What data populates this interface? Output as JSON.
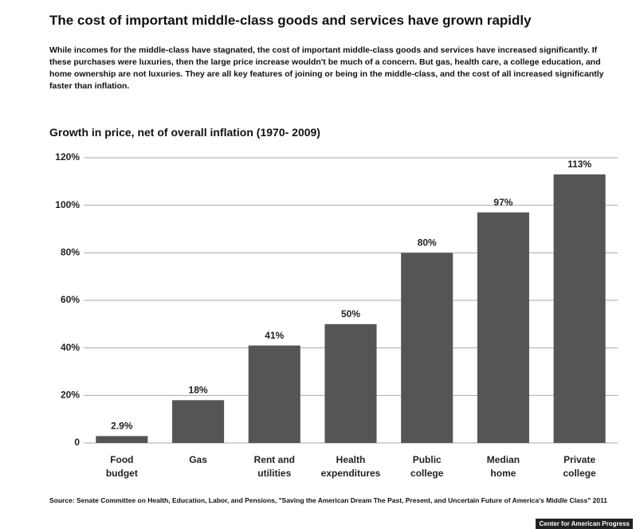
{
  "chart_data": {
    "type": "bar",
    "title": "The cost of important middle-class goods and services have grown rapidly",
    "subtitle": "While incomes for the middle-class have stagnated, the cost of important middle-class goods and services have increased significantly. If these purchases were luxuries, then the large price increase wouldn't be much of a concern. But gas, health care, a college education, and home ownership are not luxuries. They are all key features of joining or being in the middle-class, and the cost of all increased significantly faster than inflation.",
    "chart_title": "Growth in price, net of overall inflation (1970- 2009)",
    "categories": [
      "Food\nbudget",
      "Gas",
      "Rent and\nutilities",
      "Health\nexpenditures",
      "Public\ncollege",
      "Median\nhome",
      "Private\ncollege"
    ],
    "values": [
      2.9,
      18,
      41,
      50,
      80,
      97,
      113
    ],
    "value_labels": [
      "2.9%",
      "18%",
      "41%",
      "50%",
      "80%",
      "97%",
      "113%"
    ],
    "color": "#555555",
    "ylim": [
      0,
      120
    ],
    "yticks": [
      0,
      {
        "value": 20,
        "label": "20%"
      },
      {
        "value": 40,
        "label": "40%"
      },
      {
        "value": 60,
        "label": "60%"
      },
      {
        "value": 80,
        "label": "80%"
      },
      {
        "value": 100,
        "label": "100%"
      },
      {
        "value": 120,
        "label": "120%"
      }
    ],
    "grid": true,
    "source": "Source: Senate Committee on Health, Education, Labor, and Pensions, \"Saving the American Dream The Past, Present, and Uncertain Future of America's Middle Class\" 2011",
    "logo": "Center for American Progress"
  }
}
